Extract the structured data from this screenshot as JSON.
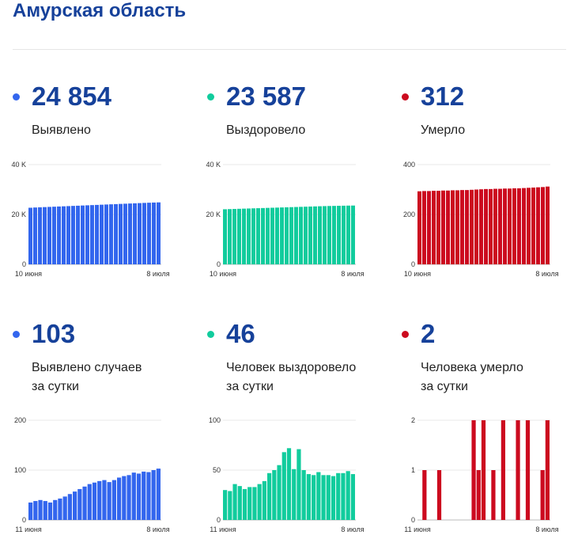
{
  "title": "Амурская область",
  "colors": {
    "blue": "#3366ee",
    "green": "#11cc9d",
    "red": "#cc0a1f"
  },
  "cards": [
    {
      "value": "24 854",
      "label1": "Выявлено",
      "label2": "",
      "color": "#3366ee"
    },
    {
      "value": "23 587",
      "label1": "Выздоровело",
      "label2": "",
      "color": "#11cc9d"
    },
    {
      "value": "312",
      "label1": "Умерло",
      "label2": "",
      "color": "#cc0a1f"
    },
    {
      "value": "103",
      "label1": "Выявлено случаев",
      "label2": "за сутки",
      "color": "#3366ee"
    },
    {
      "value": "46",
      "label1": "Человек выздоровело",
      "label2": "за сутки",
      "color": "#11cc9d"
    },
    {
      "value": "2",
      "label1": "Человека умерло",
      "label2": "за сутки",
      "color": "#cc0a1f"
    }
  ],
  "chart_data": [
    {
      "type": "bar",
      "color": "#3366ee",
      "ylim": [
        0,
        40000
      ],
      "yticks": [
        0,
        20000,
        40000
      ],
      "ytick_labels": [
        "0",
        "20 K",
        "40 K"
      ],
      "xtick_labels": [
        "10 июня",
        "8 июля"
      ],
      "values": [
        22700,
        22800,
        22880,
        22960,
        23040,
        23120,
        23200,
        23280,
        23360,
        23440,
        23520,
        23600,
        23680,
        23760,
        23840,
        23920,
        24000,
        24080,
        24160,
        24240,
        24320,
        24400,
        24480,
        24560,
        24640,
        24720,
        24790,
        24854
      ]
    },
    {
      "type": "bar",
      "color": "#11cc9d",
      "ylim": [
        0,
        40000
      ],
      "yticks": [
        0,
        20000,
        40000
      ],
      "ytick_labels": [
        "0",
        "20 K",
        "40 K"
      ],
      "xtick_labels": [
        "10 июня",
        "8 июля"
      ],
      "values": [
        22100,
        22160,
        22220,
        22280,
        22340,
        22400,
        22460,
        22520,
        22580,
        22640,
        22700,
        22760,
        22820,
        22880,
        22940,
        23000,
        23060,
        23120,
        23180,
        23240,
        23300,
        23350,
        23400,
        23440,
        23480,
        23520,
        23560,
        23587
      ]
    },
    {
      "type": "bar",
      "color": "#cc0a1f",
      "ylim": [
        0,
        400
      ],
      "yticks": [
        0,
        200,
        400
      ],
      "ytick_labels": [
        "0",
        "200",
        "400"
      ],
      "xtick_labels": [
        "10 июня",
        "8 июля"
      ],
      "values": [
        293,
        294,
        294,
        295,
        295,
        296,
        296,
        297,
        297,
        298,
        298,
        299,
        300,
        301,
        302,
        302,
        303,
        303,
        304,
        304,
        305,
        305,
        306,
        307,
        308,
        309,
        310,
        312
      ]
    },
    {
      "type": "bar",
      "color": "#3366ee",
      "ylim": [
        0,
        200
      ],
      "yticks": [
        0,
        100,
        200
      ],
      "ytick_labels": [
        "0",
        "100",
        "200"
      ],
      "xtick_labels": [
        "11 июня",
        "8 июля"
      ],
      "values": [
        35,
        38,
        40,
        38,
        35,
        40,
        43,
        47,
        52,
        57,
        62,
        67,
        72,
        75,
        78,
        80,
        76,
        80,
        85,
        88,
        90,
        95,
        93,
        97,
        96,
        100,
        103
      ]
    },
    {
      "type": "bar",
      "color": "#11cc9d",
      "ylim": [
        0,
        100
      ],
      "yticks": [
        0,
        50,
        100
      ],
      "ytick_labels": [
        "0",
        "50",
        "100"
      ],
      "xtick_labels": [
        "11 июня",
        "8 июля"
      ],
      "values": [
        30,
        29,
        36,
        34,
        31,
        33,
        33,
        36,
        39,
        47,
        50,
        55,
        68,
        72,
        51,
        71,
        50,
        46,
        45,
        48,
        45,
        45,
        44,
        47,
        47,
        49,
        46
      ]
    },
    {
      "type": "bar",
      "color": "#cc0a1f",
      "ylim": [
        0,
        2
      ],
      "yticks": [
        0,
        1,
        2
      ],
      "ytick_labels": [
        "0",
        "1",
        "2"
      ],
      "xtick_labels": [
        "11 июня",
        "8 июля"
      ],
      "values": [
        0,
        1,
        0,
        0,
        1,
        0,
        0,
        0,
        0,
        0,
        0,
        2,
        1,
        2,
        0,
        1,
        0,
        2,
        0,
        0,
        2,
        0,
        2,
        0,
        0,
        1,
        2
      ]
    }
  ]
}
